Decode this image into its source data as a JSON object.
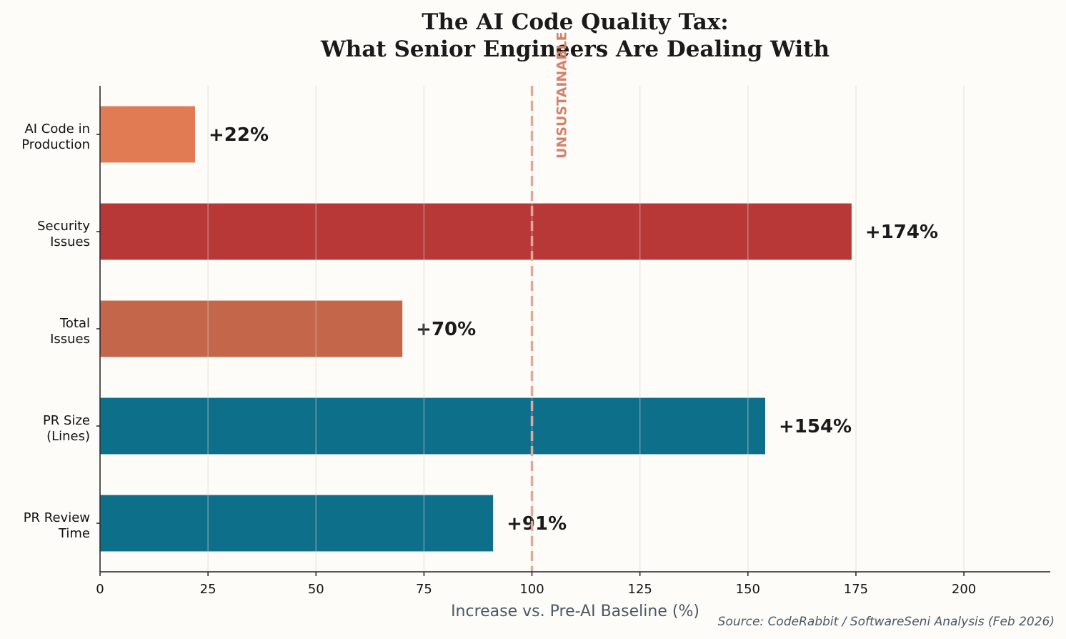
{
  "chart_data": {
    "type": "bar",
    "orientation": "horizontal",
    "title_lines": [
      "The AI Code Quality Tax:",
      "What Senior Engineers Are Dealing With"
    ],
    "xlabel": "Increase vs. Pre-AI Baseline (%)",
    "ylabel": "",
    "xlim": [
      0,
      220
    ],
    "xticks": [
      0,
      25,
      50,
      75,
      100,
      125,
      150,
      175,
      200
    ],
    "grid": "vertical",
    "categories": [
      {
        "label": [
          "AI Code in",
          "Production"
        ],
        "value": 22,
        "data_label": "+22%",
        "color": "#e07b53"
      },
      {
        "label": [
          "Security",
          "Issues"
        ],
        "value": 174,
        "data_label": "+174%",
        "color": "#b83838"
      },
      {
        "label": [
          "Total",
          "Issues"
        ],
        "value": 70,
        "data_label": "+70%",
        "color": "#c4664a"
      },
      {
        "label": [
          "PR Size",
          "(Lines)"
        ],
        "value": 154,
        "data_label": "+154%",
        "color": "#0e6f8a"
      },
      {
        "label": [
          "PR Review",
          "Time"
        ],
        "value": 91,
        "data_label": "+91%",
        "color": "#0e6f8a"
      }
    ],
    "reference_line": {
      "x": 100,
      "style": "dashed",
      "color": "#e0a898",
      "label": "UNSUSTAINABLE"
    },
    "source": "Source: CodeRabbit / SoftwareSeni Analysis (Feb 2026)"
  }
}
